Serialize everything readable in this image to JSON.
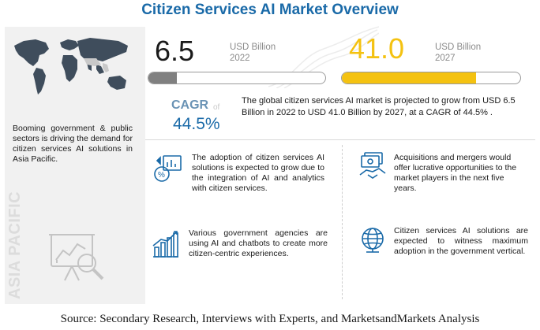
{
  "title": "Citizen Services AI Market Overview",
  "left_panel": {
    "description": "Booming government & public sectors is driving the demand for citizen services AI solutions in Asia Pacific.",
    "region_label": "ASIA PACIFIC",
    "icons": [
      "world-map-icon",
      "analytics-magnifier-icon"
    ]
  },
  "market": {
    "start_value": "6.5",
    "start_unit": "USD Billion",
    "start_year": "2022",
    "start_bar_fraction": 0.16,
    "end_value": "41.0",
    "end_unit": "USD Billion",
    "end_year": "2027",
    "end_bar_fraction": 0.75
  },
  "cagr": {
    "label": "CAGR",
    "of_label": "of",
    "value": "44.5%",
    "description": "The global citizen services AI market is projected to grow from USD 6.5 Billion in 2022 to USD 41.0 Billion by 2027, at a CAGR of 44.5% ."
  },
  "highlights": [
    {
      "icon": "analytics-integration-icon",
      "text": "The adoption of citizen services AI solutions is expected to grow due to the integration of AI and analytics with citizen services."
    },
    {
      "icon": "money-handshake-icon",
      "text": "Acquisitions and mergers would offer lucrative opportunities to the market players in the next five years."
    },
    {
      "icon": "chatbot-growth-icon",
      "text": "Various government agencies are using AI and chatbots to create more citizen-centric experiences."
    },
    {
      "icon": "globe-icon",
      "text": "Citizen services AI solutions are expected to witness maximum adoption in the government vertical."
    }
  ],
  "colors": {
    "title": "#1a6aa8",
    "accent_yellow": "#f4c211",
    "bar_grey": "#808080",
    "cagr_blue": "#1a6aa8",
    "panel_grey": "#f1f1f1"
  },
  "source": "Source: Secondary Research, Interviews with Experts, and MarketsandMarkets Analysis"
}
